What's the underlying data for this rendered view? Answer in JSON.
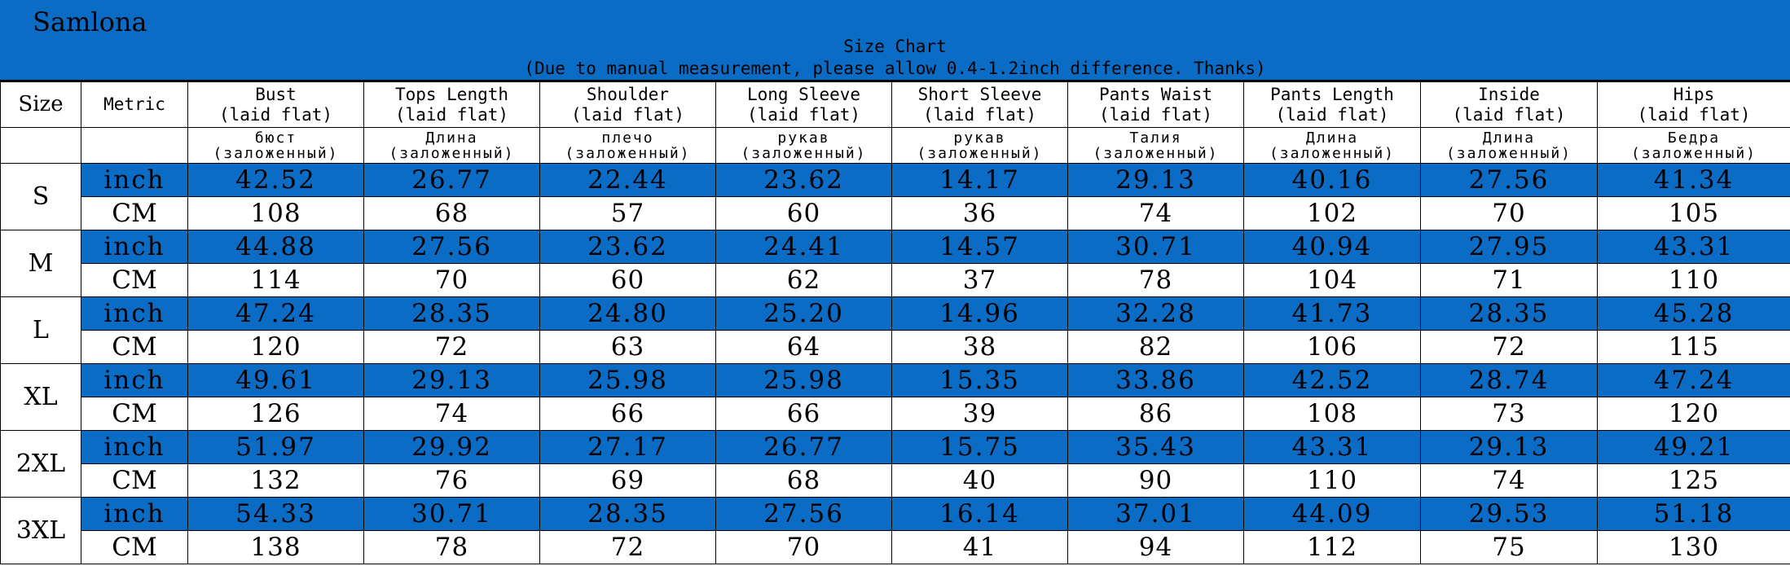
{
  "brand": "Samlona",
  "title": "Size Chart",
  "subtitle": "(Due to manual measurement, please allow 0.4-1.2inch difference. Thanks)",
  "colors": {
    "accent": "#0a6cc4",
    "border": "#000000",
    "background": "#ffffff"
  },
  "header": {
    "size_label": "Size",
    "metric_label": "Metric",
    "columns": [
      {
        "name": "Bust",
        "sub": "(laid flat)",
        "ru1": "бюст",
        "ru2": "(заложенный)"
      },
      {
        "name": "Tops Length",
        "sub": "(laid flat)",
        "ru1": "Длина",
        "ru2": "(заложенный)"
      },
      {
        "name": "Shoulder",
        "sub": "(laid flat)",
        "ru1": "плечо",
        "ru2": "(заложенный)"
      },
      {
        "name": "Long Sleeve",
        "sub": "(laid flat)",
        "ru1": "рукав",
        "ru2": "(заложенный)"
      },
      {
        "name": "Short Sleeve",
        "sub": "(laid flat)",
        "ru1": "рукав",
        "ru2": "(заложенный)"
      },
      {
        "name": "Pants Waist",
        "sub": "(laid flat)",
        "ru1": "Талия",
        "ru2": "(заложенный)"
      },
      {
        "name": "Pants Length",
        "sub": "(laid flat)",
        "ru1": "Длина",
        "ru2": "(заложенный)"
      },
      {
        "name": "Inside",
        "sub": "(laid flat)",
        "ru1": "Длина",
        "ru2": "(заложенный)"
      },
      {
        "name": "Hips",
        "sub": "(laid flat)",
        "ru1": "Бедра",
        "ru2": "(заложенный)"
      }
    ]
  },
  "rows": [
    {
      "size": "S",
      "inch_label": "inch",
      "cm_label": "CM",
      "inch": [
        "42.52",
        "26.77",
        "22.44",
        "23.62",
        "14.17",
        "29.13",
        "40.16",
        "27.56",
        "41.34"
      ],
      "cm": [
        "108",
        "68",
        "57",
        "60",
        "36",
        "74",
        "102",
        "70",
        "105"
      ]
    },
    {
      "size": "M",
      "inch_label": "inch",
      "cm_label": "CM",
      "inch": [
        "44.88",
        "27.56",
        "23.62",
        "24.41",
        "14.57",
        "30.71",
        "40.94",
        "27.95",
        "43.31"
      ],
      "cm": [
        "114",
        "70",
        "60",
        "62",
        "37",
        "78",
        "104",
        "71",
        "110"
      ]
    },
    {
      "size": "L",
      "inch_label": "inch",
      "cm_label": "CM",
      "inch": [
        "47.24",
        "28.35",
        "24.80",
        "25.20",
        "14.96",
        "32.28",
        "41.73",
        "28.35",
        "45.28"
      ],
      "cm": [
        "120",
        "72",
        "63",
        "64",
        "38",
        "82",
        "106",
        "72",
        "115"
      ]
    },
    {
      "size": "XL",
      "inch_label": "inch",
      "cm_label": "CM",
      "inch": [
        "49.61",
        "29.13",
        "25.98",
        "25.98",
        "15.35",
        "33.86",
        "42.52",
        "28.74",
        "47.24"
      ],
      "cm": [
        "126",
        "74",
        "66",
        "66",
        "39",
        "86",
        "108",
        "73",
        "120"
      ]
    },
    {
      "size": "2XL",
      "inch_label": "inch",
      "cm_label": "CM",
      "inch": [
        "51.97",
        "29.92",
        "27.17",
        "26.77",
        "15.75",
        "35.43",
        "43.31",
        "29.13",
        "49.21"
      ],
      "cm": [
        "132",
        "76",
        "69",
        "68",
        "40",
        "90",
        "110",
        "74",
        "125"
      ]
    },
    {
      "size": "3XL",
      "inch_label": "inch",
      "cm_label": "CM",
      "inch": [
        "54.33",
        "30.71",
        "28.35",
        "27.56",
        "16.14",
        "37.01",
        "44.09",
        "29.53",
        "51.18"
      ],
      "cm": [
        "138",
        "78",
        "72",
        "70",
        "41",
        "94",
        "112",
        "75",
        "130"
      ]
    }
  ]
}
